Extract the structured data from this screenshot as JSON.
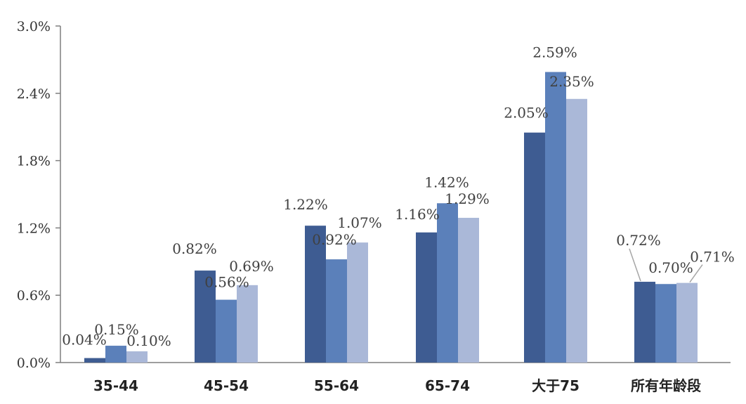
{
  "chart_data": {
    "type": "bar",
    "categories": [
      "35-44",
      "45-54",
      "55-64",
      "65-74",
      "大于75",
      "所有年龄段"
    ],
    "series": [
      {
        "values": [
          0.04,
          0.82,
          1.22,
          1.16,
          2.05,
          0.72
        ],
        "labels": [
          "0.04%",
          "0.82%",
          "1.22%",
          "1.16%",
          "2.05%",
          "0.72%"
        ]
      },
      {
        "values": [
          0.15,
          0.56,
          0.92,
          1.42,
          2.59,
          0.7
        ],
        "labels": [
          "0.15%",
          "0.56%",
          "0.92%",
          "1.42%",
          "2.59%",
          "0.70%"
        ]
      },
      {
        "values": [
          0.1,
          0.69,
          1.07,
          1.29,
          2.35,
          0.71
        ],
        "labels": [
          "0.10%",
          "0.69%",
          "1.07%",
          "1.29%",
          "2.35%",
          "0.71%"
        ]
      }
    ],
    "colors": [
      "#3e5c92",
      "#5b80ba",
      "#aab8d8"
    ],
    "yticks": [
      "0.0%",
      "0.6%",
      "1.2%",
      "1.8%",
      "2.4%",
      "3.0%"
    ],
    "ylim": [
      0,
      3.0
    ],
    "grid": false,
    "legend": "none"
  }
}
